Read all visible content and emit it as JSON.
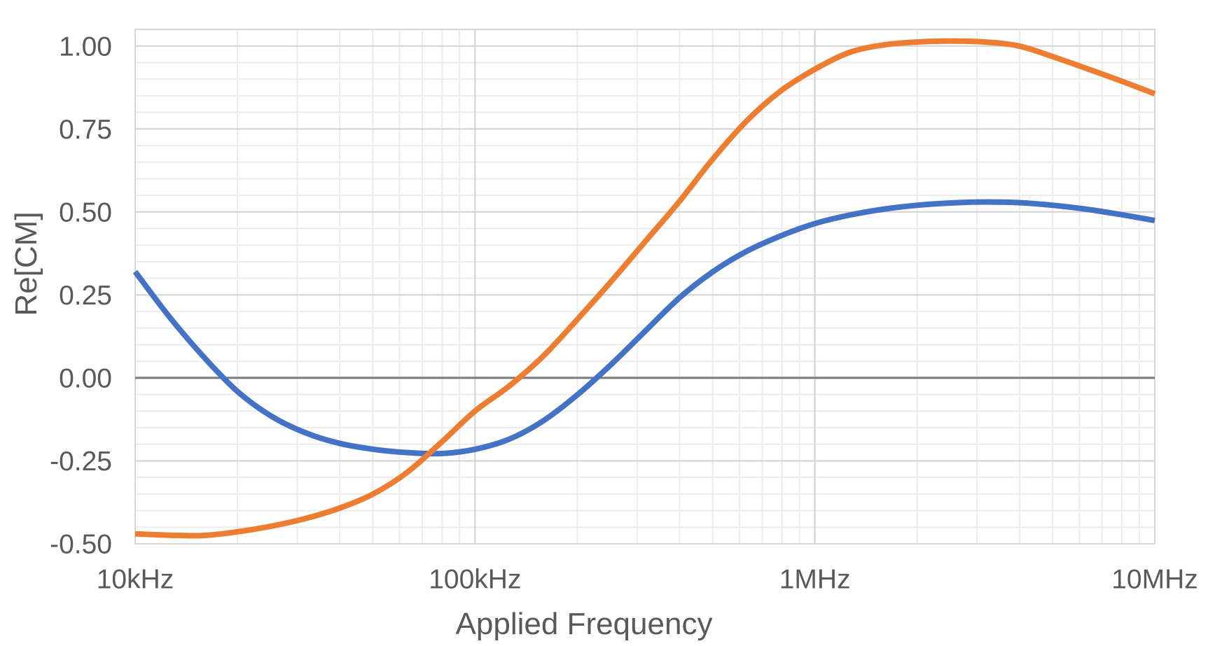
{
  "chart_data": {
    "type": "line",
    "title": "",
    "x_axis": {
      "title": "Applied Frequency",
      "scale": "log",
      "min_hz": 10000,
      "max_hz": 10000000,
      "tick_values_hz": [
        10000,
        100000,
        1000000,
        10000000
      ],
      "tick_labels": [
        "10kHz",
        "100kHz",
        "1MHz",
        "10MHz"
      ],
      "minor_gridlines_per_decade": [
        2,
        3,
        4,
        5,
        6,
        7,
        8,
        9
      ]
    },
    "y_axis": {
      "title": "Re[CM]",
      "min": -0.5,
      "max": 1.05,
      "major_step": 0.25,
      "minor_step": 0.05,
      "tick_values": [
        1.0,
        0.75,
        0.5,
        0.25,
        0.0,
        -0.25,
        -0.5
      ],
      "tick_labels": [
        "1.00",
        "0.75",
        "0.50",
        "0.25",
        "0.00",
        "-0.25",
        "-0.50"
      ]
    },
    "zero_line_at": 0.0,
    "grid": "on",
    "legend": "none",
    "x_log10_hz": [
      4.0,
      4.1,
      4.2,
      4.3,
      4.4,
      4.5,
      4.6,
      4.7,
      4.8,
      4.9,
      5.0,
      5.1,
      5.2,
      5.3,
      5.4,
      5.5,
      5.6,
      5.7,
      5.8,
      5.9,
      6.0,
      6.1,
      6.2,
      6.3,
      6.4,
      6.5,
      6.6,
      6.7,
      6.8,
      6.9,
      7.0
    ],
    "series": [
      {
        "id": "blue-series",
        "color": "#4472C4",
        "values": [
          0.32,
          0.185,
          0.065,
          -0.04,
          -0.115,
          -0.165,
          -0.197,
          -0.215,
          -0.225,
          -0.228,
          -0.215,
          -0.185,
          -0.13,
          -0.052,
          0.04,
          0.14,
          0.24,
          0.32,
          0.382,
          0.428,
          0.465,
          0.49,
          0.508,
          0.52,
          0.527,
          0.53,
          0.528,
          0.52,
          0.508,
          0.492,
          0.474
        ]
      },
      {
        "id": "orange-series",
        "color": "#ED7D31",
        "values": [
          -0.47,
          -0.474,
          -0.475,
          -0.464,
          -0.447,
          -0.424,
          -0.393,
          -0.35,
          -0.285,
          -0.195,
          -0.1,
          -0.025,
          0.065,
          0.175,
          0.29,
          0.41,
          0.53,
          0.66,
          0.775,
          0.865,
          0.93,
          0.98,
          1.003,
          1.012,
          1.015,
          1.012,
          1.0,
          0.968,
          0.932,
          0.895,
          0.856
        ]
      }
    ],
    "colors": {
      "axis_text": "#595959",
      "minor_gridline": "#EBEBEB",
      "major_gridline": "#D2D2D2",
      "plot_border": "#D6D6D6",
      "zero_line": "#7A7A7A",
      "background": "#FFFFFF"
    }
  }
}
